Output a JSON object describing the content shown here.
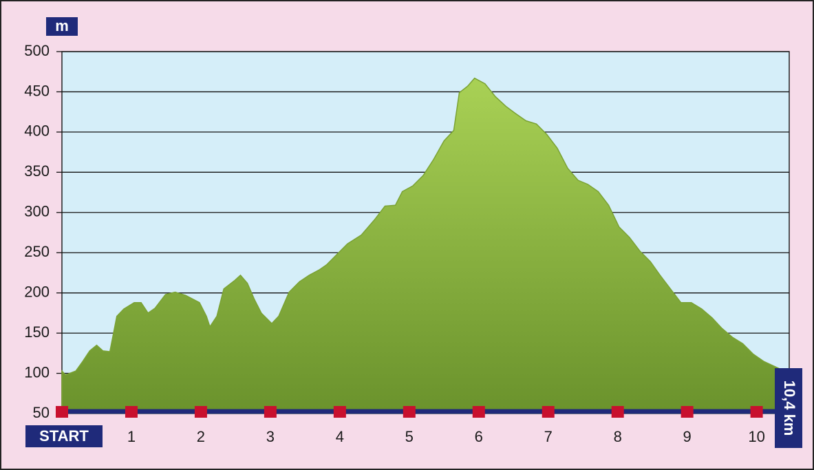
{
  "chart_data": {
    "type": "area",
    "y_label": "m",
    "end_label": "10,4 km",
    "x": [
      0,
      0.05,
      0.2,
      0.3,
      0.4,
      0.5,
      0.59,
      0.69,
      0.79,
      0.89,
      1.04,
      1.14,
      1.24,
      1.34,
      1.49,
      1.63,
      1.78,
      1.98,
      2.08,
      2.13,
      2.23,
      2.33,
      2.48,
      2.57,
      2.67,
      2.77,
      2.87,
      3.02,
      3.12,
      3.27,
      3.42,
      3.56,
      3.71,
      3.81,
      3.96,
      4.11,
      4.31,
      4.5,
      4.65,
      4.8,
      4.9,
      5.05,
      5.2,
      5.35,
      5.5,
      5.64,
      5.72,
      5.84,
      5.94,
      6.09,
      6.24,
      6.39,
      6.53,
      6.68,
      6.83,
      6.98,
      7.13,
      7.28,
      7.43,
      7.57,
      7.72,
      7.87,
      8.02,
      8.17,
      8.32,
      8.47,
      8.61,
      8.76,
      8.91,
      9.06,
      9.21,
      9.36,
      9.5,
      9.65,
      9.8,
      9.95,
      10.1,
      10.3,
      10.4
    ],
    "values": [
      103,
      98,
      103,
      115,
      128,
      135,
      128,
      127,
      171,
      180,
      188,
      188,
      175,
      181,
      198,
      201,
      197,
      188,
      171,
      158,
      171,
      205,
      215,
      222,
      212,
      192,
      175,
      162,
      171,
      201,
      214,
      222,
      229,
      235,
      248,
      261,
      272,
      291,
      308,
      309,
      326,
      333,
      346,
      366,
      389,
      402,
      449,
      457,
      467,
      460,
      444,
      432,
      423,
      414,
      410,
      397,
      380,
      355,
      340,
      335,
      326,
      309,
      282,
      269,
      252,
      239,
      222,
      205,
      188,
      188,
      180,
      169,
      156,
      145,
      137,
      124,
      115,
      107,
      103
    ],
    "xlim": [
      0,
      10.4
    ],
    "xticks": [
      {
        "value": 0,
        "label": "START"
      },
      1,
      2,
      3,
      4,
      5,
      6,
      7,
      8,
      9,
      10
    ],
    "ylim": [
      50,
      500
    ],
    "yticks": [
      50,
      100,
      150,
      200,
      250,
      300,
      350,
      400,
      450,
      500
    ],
    "grid": true,
    "color": "#8db541",
    "marker_color": "#c8102e"
  }
}
